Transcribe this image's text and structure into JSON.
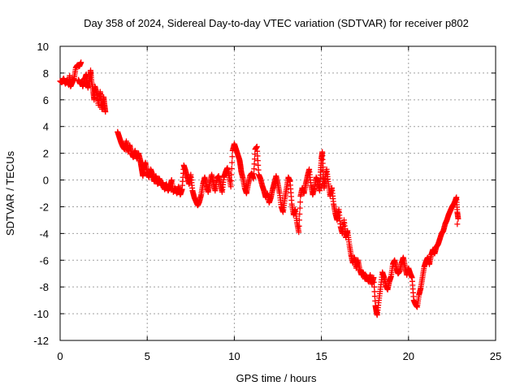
{
  "chart_data": {
    "type": "scatter",
    "title": "Day 358 of 2024, Sidereal Day-to-day VTEC variation (SDTVAR) for receiver p802",
    "xlabel": "GPS time / hours",
    "ylabel": "SDTVAR / TECUs",
    "xlim": [
      0,
      25
    ],
    "ylim": [
      -12,
      10
    ],
    "xticks": [
      "0",
      "5",
      "10",
      "15",
      "20",
      "25"
    ],
    "yticks": [
      "10",
      "8",
      "6",
      "4",
      "2",
      "0",
      "-2",
      "-4",
      "-6",
      "-8",
      "-10",
      "-12"
    ],
    "grid": true,
    "marker": "+",
    "color": "#ff0000",
    "series": [
      {
        "name": "SDTVAR",
        "points": [
          [
            0.0,
            7.4
          ],
          [
            0.1,
            7.3
          ],
          [
            0.2,
            7.6
          ],
          [
            0.3,
            7.2
          ],
          [
            0.4,
            7.5
          ],
          [
            0.5,
            7.1
          ],
          [
            0.55,
            7.8
          ],
          [
            0.6,
            7.0
          ],
          [
            0.7,
            7.3
          ],
          [
            0.8,
            7.6
          ],
          [
            0.9,
            8.4
          ],
          [
            1.0,
            8.6
          ],
          [
            1.1,
            8.5
          ],
          [
            1.2,
            8.8
          ],
          [
            1.05,
            7.5
          ],
          [
            1.15,
            7.2
          ],
          [
            1.25,
            7.4
          ],
          [
            1.3,
            7.0
          ],
          [
            1.4,
            7.5
          ],
          [
            1.5,
            7.9
          ],
          [
            1.55,
            7.3
          ],
          [
            1.6,
            6.9
          ],
          [
            1.7,
            7.6
          ],
          [
            1.75,
            8.2
          ],
          [
            1.8,
            7.4
          ],
          [
            1.9,
            6.6
          ],
          [
            1.95,
            6.0
          ],
          [
            2.0,
            7.0
          ],
          [
            2.1,
            6.5
          ],
          [
            2.2,
            5.6
          ],
          [
            2.3,
            6.6
          ],
          [
            2.35,
            6.0
          ],
          [
            2.4,
            5.3
          ],
          [
            2.5,
            6.2
          ],
          [
            2.55,
            5.6
          ],
          [
            2.6,
            5.1
          ],
          [
            3.3,
            3.6
          ],
          [
            3.4,
            3.2
          ],
          [
            3.5,
            2.8
          ],
          [
            3.6,
            2.5
          ],
          [
            3.7,
            2.3
          ],
          [
            3.8,
            2.9
          ],
          [
            3.9,
            2.1
          ],
          [
            4.0,
            2.6
          ],
          [
            4.1,
            2.0
          ],
          [
            4.2,
            1.7
          ],
          [
            4.3,
            2.2
          ],
          [
            4.4,
            1.6
          ],
          [
            4.5,
            2.0
          ],
          [
            4.6,
            1.5
          ],
          [
            4.65,
            1.1
          ],
          [
            4.7,
            0.7
          ],
          [
            4.75,
            0.3
          ],
          [
            4.8,
            0.9
          ],
          [
            4.9,
            1.3
          ],
          [
            5.0,
            0.6
          ],
          [
            5.1,
            0.2
          ],
          [
            5.2,
            0.8
          ],
          [
            5.3,
            0.4
          ],
          [
            5.4,
            -0.1
          ],
          [
            5.5,
            0.3
          ],
          [
            5.6,
            -0.3
          ],
          [
            5.7,
            0.1
          ],
          [
            5.8,
            -0.4
          ],
          [
            5.9,
            -0.2
          ],
          [
            6.0,
            -0.7
          ],
          [
            6.1,
            -0.3
          ],
          [
            6.2,
            -0.8
          ],
          [
            6.3,
            -0.5
          ],
          [
            6.4,
            0.0
          ],
          [
            6.5,
            -0.9
          ],
          [
            6.6,
            -0.6
          ],
          [
            6.7,
            -1.0
          ],
          [
            6.8,
            -0.5
          ],
          [
            6.9,
            -1.1
          ],
          [
            7.0,
            -0.7
          ],
          [
            7.1,
            1.1
          ],
          [
            7.2,
            0.7
          ],
          [
            7.3,
            0.2
          ],
          [
            7.4,
            -0.3
          ],
          [
            7.5,
            0.4
          ],
          [
            7.6,
            -0.8
          ],
          [
            7.7,
            -1.3
          ],
          [
            7.8,
            -1.6
          ],
          [
            7.9,
            -1.9
          ],
          [
            8.0,
            -1.6
          ],
          [
            8.1,
            -1.1
          ],
          [
            8.2,
            -0.3
          ],
          [
            8.3,
            0.2
          ],
          [
            8.4,
            -0.4
          ],
          [
            8.5,
            -0.9
          ],
          [
            8.6,
            -0.2
          ],
          [
            8.7,
            0.4
          ],
          [
            8.8,
            -0.2
          ],
          [
            8.9,
            -0.8
          ],
          [
            9.0,
            0.1
          ],
          [
            9.1,
            0.3
          ],
          [
            9.2,
            -0.3
          ],
          [
            9.3,
            -0.9
          ],
          [
            9.4,
            0.2
          ],
          [
            9.5,
            0.6
          ],
          [
            9.6,
            0.9
          ],
          [
            9.7,
            0.3
          ],
          [
            9.8,
            -0.5
          ],
          [
            9.9,
            2.2
          ],
          [
            10.0,
            2.7
          ],
          [
            10.1,
            2.3
          ],
          [
            10.2,
            1.9
          ],
          [
            10.3,
            1.5
          ],
          [
            10.35,
            1.1
          ],
          [
            10.4,
            0.6
          ],
          [
            10.5,
            0.1
          ],
          [
            10.6,
            -0.6
          ],
          [
            10.7,
            -1.0
          ],
          [
            10.8,
            -0.3
          ],
          [
            10.9,
            0.3
          ],
          [
            11.0,
            0.5
          ],
          [
            11.1,
            0.1
          ],
          [
            11.2,
            2.3
          ],
          [
            11.3,
            2.5
          ],
          [
            11.4,
            0.4
          ],
          [
            11.5,
            0.1
          ],
          [
            11.6,
            -0.4
          ],
          [
            11.7,
            -0.8
          ],
          [
            11.8,
            -1.3
          ],
          [
            11.9,
            -1.0
          ],
          [
            12.0,
            -1.7
          ],
          [
            12.1,
            -1.3
          ],
          [
            12.2,
            -0.7
          ],
          [
            12.3,
            -0.2
          ],
          [
            12.4,
            0.3
          ],
          [
            12.5,
            -0.3
          ],
          [
            12.6,
            -1.0
          ],
          [
            12.7,
            -2.0
          ],
          [
            12.8,
            -2.4
          ],
          [
            12.9,
            -1.4
          ],
          [
            13.0,
            -0.6
          ],
          [
            13.1,
            0.2
          ],
          [
            13.2,
            -0.1
          ],
          [
            13.3,
            -1.8
          ],
          [
            13.4,
            -2.6
          ],
          [
            13.5,
            -2.2
          ],
          [
            13.6,
            -3.2
          ],
          [
            13.7,
            -3.9
          ],
          [
            13.8,
            -1.2
          ],
          [
            13.9,
            -0.6
          ],
          [
            14.0,
            -1.0
          ],
          [
            14.1,
            -0.3
          ],
          [
            14.2,
            0.3
          ],
          [
            14.3,
            0.8
          ],
          [
            14.4,
            -0.4
          ],
          [
            14.5,
            -1.1
          ],
          [
            14.6,
            -0.6
          ],
          [
            14.7,
            0.2
          ],
          [
            14.8,
            -0.2
          ],
          [
            14.9,
            -0.8
          ],
          [
            14.95,
            0.6
          ],
          [
            15.0,
            1.6
          ],
          [
            15.05,
            2.1
          ],
          [
            15.1,
            0.4
          ],
          [
            15.15,
            -0.6
          ],
          [
            15.2,
            0.0
          ],
          [
            15.3,
            0.8
          ],
          [
            15.4,
            -0.3
          ],
          [
            15.5,
            -1.2
          ],
          [
            15.6,
            -0.6
          ],
          [
            15.7,
            -1.8
          ],
          [
            15.8,
            -2.5
          ],
          [
            15.9,
            -3.0
          ],
          [
            16.0,
            -2.2
          ],
          [
            16.1,
            -3.5
          ],
          [
            16.2,
            -4.0
          ],
          [
            16.3,
            -3.0
          ],
          [
            16.4,
            -4.3
          ],
          [
            16.5,
            -3.8
          ],
          [
            16.6,
            -4.8
          ],
          [
            16.7,
            -5.6
          ],
          [
            16.8,
            -6.2
          ],
          [
            16.9,
            -5.8
          ],
          [
            17.0,
            -6.6
          ],
          [
            17.1,
            -6.0
          ],
          [
            17.2,
            -6.7
          ],
          [
            17.3,
            -7.1
          ],
          [
            17.4,
            -6.9
          ],
          [
            17.5,
            -7.4
          ],
          [
            17.6,
            -7.2
          ],
          [
            17.7,
            -7.6
          ],
          [
            17.8,
            -7.1
          ],
          [
            17.9,
            -7.8
          ],
          [
            18.0,
            -7.3
          ],
          [
            18.1,
            -9.4
          ],
          [
            18.15,
            -9.8
          ],
          [
            18.2,
            -10.1
          ],
          [
            18.3,
            -9.0
          ],
          [
            18.4,
            -8.0
          ],
          [
            18.5,
            -6.9
          ],
          [
            18.6,
            -7.3
          ],
          [
            18.7,
            -7.9
          ],
          [
            18.8,
            -8.2
          ],
          [
            18.9,
            -7.6
          ],
          [
            19.0,
            -7.2
          ],
          [
            19.1,
            -6.3
          ],
          [
            19.2,
            -6.0
          ],
          [
            19.3,
            -6.6
          ],
          [
            19.4,
            -7.0
          ],
          [
            19.5,
            -6.8
          ],
          [
            19.6,
            -6.2
          ],
          [
            19.7,
            -5.8
          ],
          [
            19.8,
            -6.5
          ],
          [
            19.9,
            -7.1
          ],
          [
            20.0,
            -6.6
          ],
          [
            20.1,
            -7.0
          ],
          [
            20.2,
            -7.3
          ],
          [
            20.3,
            -9.0
          ],
          [
            20.4,
            -9.3
          ],
          [
            20.5,
            -9.5
          ],
          [
            20.6,
            -8.6
          ],
          [
            20.7,
            -8.1
          ],
          [
            20.8,
            -7.3
          ],
          [
            20.9,
            -6.5
          ],
          [
            21.0,
            -6.1
          ],
          [
            21.1,
            -5.8
          ],
          [
            21.2,
            -6.3
          ],
          [
            21.3,
            -5.6
          ],
          [
            21.4,
            -5.2
          ],
          [
            21.5,
            -5.5
          ],
          [
            21.6,
            -5.0
          ],
          [
            21.7,
            -4.8
          ],
          [
            21.8,
            -4.4
          ],
          [
            21.9,
            -4.0
          ],
          [
            22.0,
            -3.8
          ],
          [
            22.1,
            -3.3
          ],
          [
            22.2,
            -3.0
          ],
          [
            22.3,
            -2.6
          ],
          [
            22.4,
            -2.3
          ],
          [
            22.5,
            -2.0
          ],
          [
            22.6,
            -1.8
          ],
          [
            22.7,
            -1.5
          ],
          [
            22.75,
            -1.3
          ],
          [
            22.8,
            -2.4
          ],
          [
            22.85,
            -2.9
          ],
          [
            22.8,
            -3.3
          ]
        ]
      }
    ]
  }
}
